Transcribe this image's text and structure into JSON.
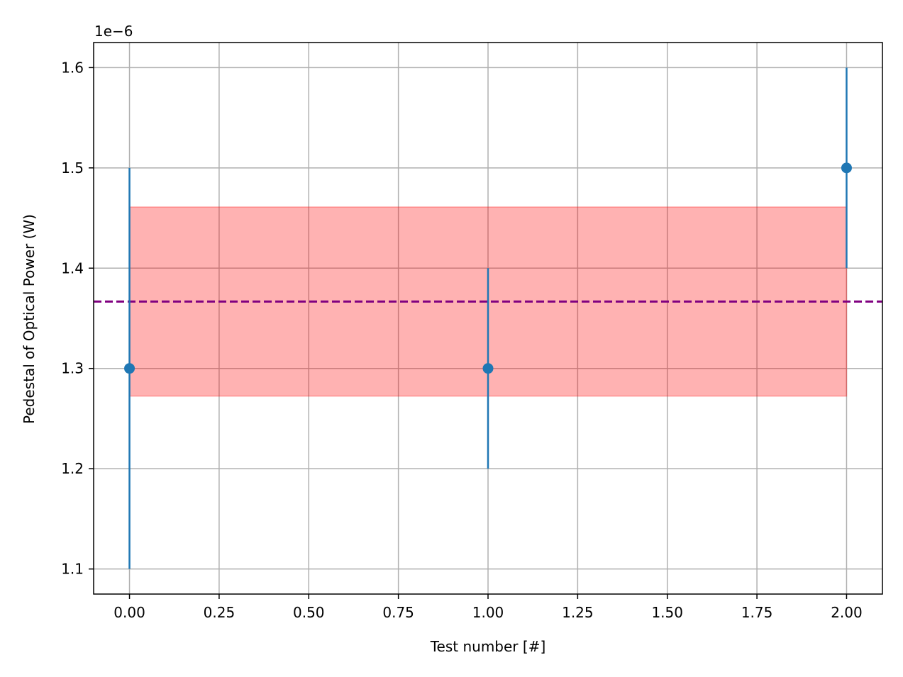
{
  "chart_data": {
    "type": "scatter",
    "title": "",
    "xlabel": "Test number [#]",
    "ylabel": "Pedestal of Optical Power (W)",
    "offset_label": "1e−6",
    "y_scale_factor": 1e-06,
    "xlim": [
      -0.1,
      2.1
    ],
    "ylim": [
      1.075,
      1.625
    ],
    "x_ticks": [
      0.0,
      0.25,
      0.5,
      0.75,
      1.0,
      1.25,
      1.5,
      1.75,
      2.0
    ],
    "x_tick_labels": [
      "0.00",
      "0.25",
      "0.50",
      "0.75",
      "1.00",
      "1.25",
      "1.50",
      "1.75",
      "2.00"
    ],
    "y_ticks": [
      1.1,
      1.2,
      1.3,
      1.4,
      1.5,
      1.6
    ],
    "y_tick_labels": [
      "1.1",
      "1.2",
      "1.3",
      "1.4",
      "1.5",
      "1.6"
    ],
    "grid": true,
    "series": [
      {
        "x": [
          0,
          1,
          2
        ],
        "y": [
          1.3,
          1.3,
          1.5
        ],
        "yerr": [
          0.2,
          0.1,
          0.1
        ],
        "color": "#1f77b4"
      }
    ],
    "mean_line": {
      "y": 1.3667,
      "color": "#800080",
      "style": "dashed"
    },
    "band": {
      "x": [
        0,
        2
      ],
      "y_low": 1.2724,
      "y_high": 1.461,
      "color": "#ff0000",
      "alpha": 0.3
    }
  }
}
